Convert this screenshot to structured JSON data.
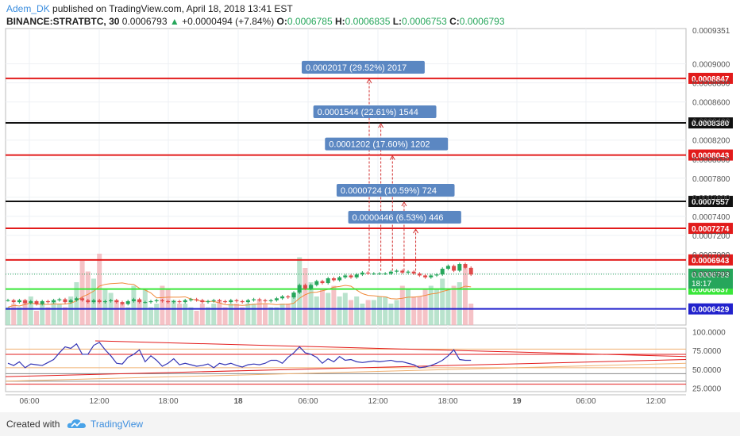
{
  "header": {
    "author": "Adem_DK",
    "published": "published on TradingView.com, April 18, 2018 13:41 EST",
    "symbol": "BINANCE:STRATBTC, 30",
    "last": "0.0006793",
    "change": "+0.0000494 (+7.84%)",
    "o_label": "O:",
    "o": "0.0006785",
    "h_label": "H:",
    "h": "0.0006835",
    "l_label": "L:",
    "l": "0.0006753",
    "c_label": "C:",
    "c": "0.0006793"
  },
  "footer": {
    "created": "Created with",
    "brand": "TradingView"
  },
  "colors": {
    "red": "#e21b1b",
    "black": "#111111",
    "green": "#39e639",
    "blue": "#2222cc",
    "arrow": "#d33131",
    "badge": "#5b87c2",
    "rsi": "#3535b5",
    "up": "#26a65b",
    "down": "#e04a4a"
  },
  "chart_data": {
    "type": "candlestick",
    "price_axis": {
      "range": [
        0.000626,
        0.000937
      ],
      "ticks": [
        "0.0009000",
        "0.0008800",
        "0.0008600",
        "0.0008400",
        "0.0008200",
        "0.0008000",
        "0.0007800",
        "0.0007600",
        "0.0007400",
        "0.0007200",
        "0.0007000",
        "0.0006800"
      ],
      "top_partial": "0.0009351"
    },
    "time_axis": {
      "labels": [
        "06:00",
        "12:00",
        "18:00",
        "18",
        "06:00",
        "12:00",
        "18:00",
        "19",
        "06:00",
        "12:00"
      ],
      "bold": [
        "18",
        "19"
      ]
    },
    "hlines": [
      {
        "value": 0.0008847,
        "label": "0.0008847",
        "color": "red"
      },
      {
        "value": 0.000838,
        "label": "0.0008380",
        "color": "black"
      },
      {
        "value": 0.0008043,
        "label": "0.0008043",
        "color": "red"
      },
      {
        "value": 0.0007557,
        "label": "0.0007557",
        "color": "black"
      },
      {
        "value": 0.0007274,
        "label": "0.0007274",
        "color": "red"
      },
      {
        "value": 0.0006943,
        "label": "0.0006943",
        "color": "red"
      },
      {
        "value": 0.0006637,
        "label": "0.0006637",
        "color": "green"
      },
      {
        "value": 0.0006429,
        "label": "0.0006429",
        "color": "blue"
      }
    ],
    "price_tags": [
      {
        "value": 0.0006793,
        "label": "0.0006793",
        "bg": "#26a65b"
      },
      {
        "value": 0.00067,
        "label": "18:17",
        "bg": "#26a65b"
      }
    ],
    "measurements": [
      {
        "t": 15.0,
        "target": 0.0008847,
        "label": "0.0002017 (29.52%) 2017"
      },
      {
        "t": 16.2,
        "target": 0.000838,
        "label": "0.0001544 (22.61%) 1544"
      },
      {
        "t": 17.4,
        "target": 0.0008043,
        "label": "0.0001202 (17.60%) 1202"
      },
      {
        "t": 18.6,
        "target": 0.0007557,
        "label": "0.0000724 (10.59%) 724"
      },
      {
        "t": 19.8,
        "target": 0.0007274,
        "label": "0.0000446 (6.53%) 446"
      }
    ],
    "measure_base": 0.000683,
    "candles_closes": [
      0.000652,
      0.00065,
      0.000652,
      0.000649,
      0.000651,
      0.000648,
      0.000651,
      0.00065,
      0.000652,
      0.000653,
      0.00065,
      0.000652,
      0.000654,
      0.000652,
      0.00065,
      0.000652,
      0.00065,
      0.000651,
      0.000652,
      0.00065,
      0.000648,
      0.000651,
      0.000653,
      0.00065,
      0.00065,
      0.000651,
      0.000652,
      0.000651,
      0.00065,
      0.000651,
      0.00065,
      0.000652,
      0.000653,
      0.000652,
      0.00065,
      0.000651,
      0.000652,
      0.000651,
      0.00065,
      0.000652,
      0.000651,
      0.00065,
      0.000652,
      0.000653,
      0.000652,
      0.000651,
      0.000652,
      0.000654,
      0.000656,
      0.000655,
      0.00066,
      0.000668,
      0.000664,
      0.000668,
      0.000672,
      0.00067,
      0.000675,
      0.000673,
      0.000676,
      0.000678,
      0.000676,
      0.000679,
      0.000681,
      0.00068,
      0.00068,
      0.00068,
      0.00068,
      0.000682,
      0.000683,
      0.000681,
      0.000682,
      0.00068,
      0.000678,
      0.000676,
      0.000678,
      0.000679,
      0.000685,
      0.000688,
      0.000683,
      0.00069,
      0.000686,
      0.000679
    ],
    "volumes": [
      0.25,
      0.3,
      0.25,
      0.35,
      0.4,
      0.2,
      0.3,
      0.25,
      0.35,
      0.3,
      0.25,
      0.4,
      0.6,
      0.9,
      0.75,
      0.65,
      1.0,
      0.5,
      0.45,
      0.35,
      0.3,
      0.25,
      0.55,
      0.35,
      0.5,
      0.25,
      0.3,
      0.55,
      0.5,
      0.35,
      0.3,
      0.3,
      0.25,
      0.2,
      0.3,
      0.25,
      0.3,
      0.35,
      0.25,
      0.3,
      0.3,
      0.25,
      0.3,
      0.3,
      0.35,
      0.3,
      0.25,
      0.25,
      0.3,
      0.3,
      0.45,
      0.95,
      0.8,
      0.6,
      0.4,
      0.5,
      0.45,
      0.55,
      0.4,
      0.45,
      0.35,
      0.4,
      0.3,
      0.35,
      0.35,
      0.4,
      0.4,
      0.3,
      0.35,
      0.55,
      0.5,
      0.4,
      0.4,
      0.5,
      0.55,
      0.5,
      0.65,
      0.5,
      0.55,
      0.6,
      0.8,
      0.3
    ],
    "rsi": {
      "ticks": [
        "100.0000",
        "75.0000",
        "50.0000",
        "25.0000"
      ],
      "range": [
        20,
        105
      ],
      "values": [
        58,
        55,
        60,
        52,
        57,
        56,
        55,
        59,
        63,
        72,
        80,
        78,
        84,
        70,
        70,
        82,
        86,
        76,
        68,
        58,
        57,
        66,
        70,
        76,
        60,
        68,
        62,
        54,
        58,
        64,
        56,
        58,
        56,
        54,
        55,
        57,
        52,
        58,
        56,
        58,
        55,
        53,
        56,
        57,
        56,
        58,
        62,
        62,
        58,
        66,
        72,
        80,
        72,
        70,
        66,
        58,
        64,
        60,
        67,
        62,
        63,
        60,
        59,
        60,
        61,
        60,
        61,
        62,
        60,
        60,
        58,
        56,
        52,
        53,
        55,
        58,
        62,
        68,
        76,
        63,
        62,
        62
      ],
      "hlines": [
        {
          "value": 70,
          "color": "red"
        },
        {
          "value": 30,
          "color": "red"
        },
        {
          "value": 77,
          "color": "#f0b070"
        },
        {
          "value": 52,
          "color": "#f0b070"
        },
        {
          "value": 44,
          "color": "#888888"
        },
        {
          "value": 34,
          "color": "#888888"
        }
      ]
    }
  }
}
